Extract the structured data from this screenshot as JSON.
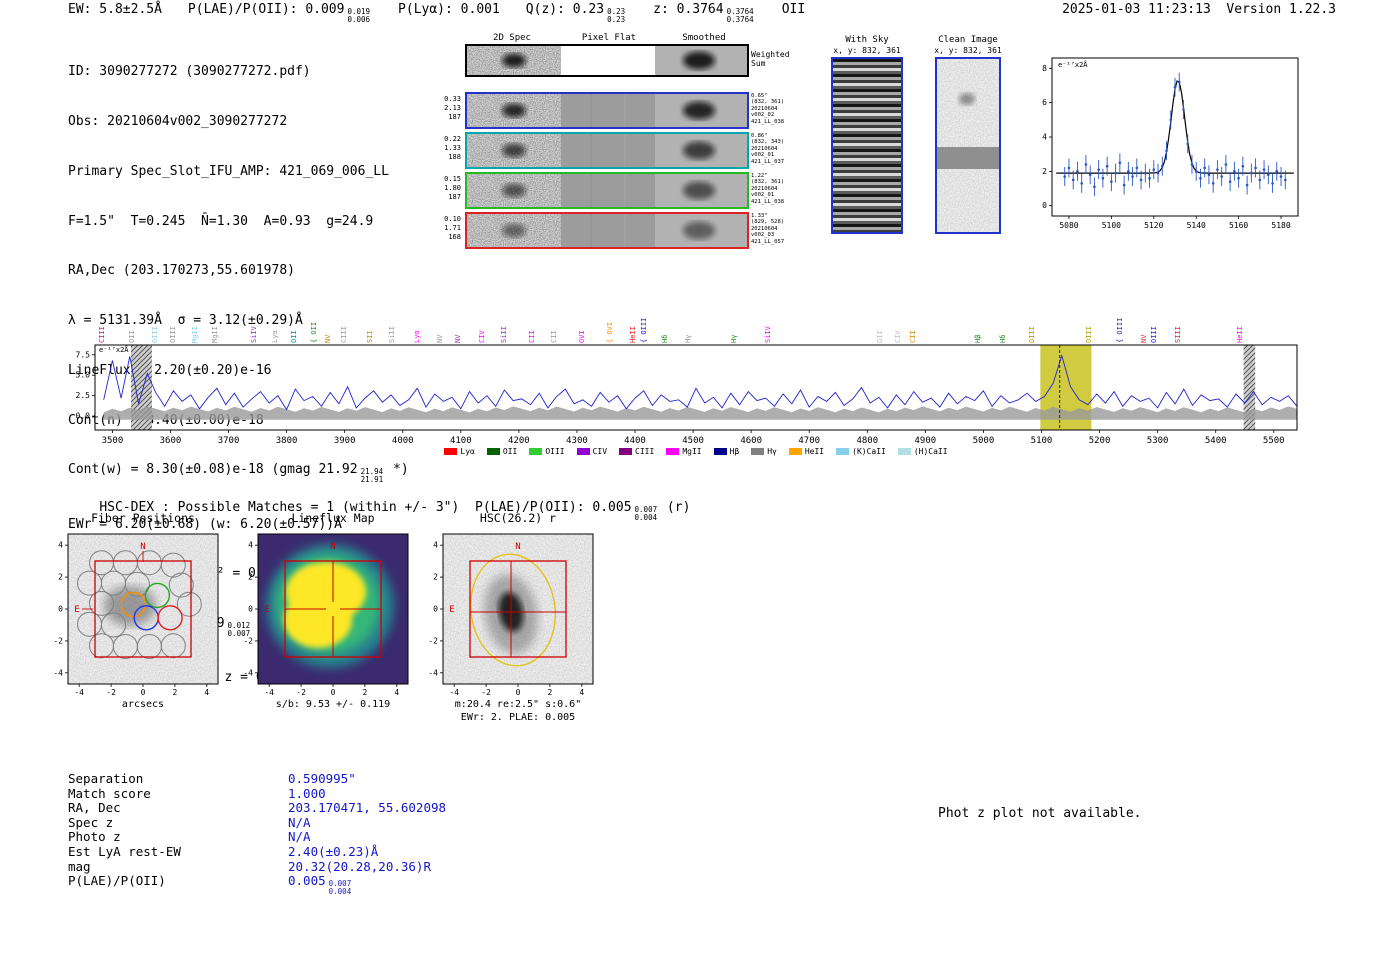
{
  "meta": {
    "timestamp": "2025-01-03 11:23:13  Version 1.22.3"
  },
  "header": {
    "ew": "EW: 5.8±2.5Å",
    "plae": {
      "label": "P(LAE)/P(OII): 0.009",
      "sup": "0.019",
      "sub": "0.006"
    },
    "plya": "P(Lyα): 0.001",
    "qz": {
      "label": "Q(z): 0.23",
      "sup": "0.23",
      "sub": "0.23"
    },
    "z": {
      "label": "z: 0.3764",
      "sup": "0.3764",
      "sub": "0.3764"
    },
    "classification": "OII"
  },
  "info": {
    "l1": "ID: 3090277272 (3090277272.pdf)",
    "l2": "Obs: 20210604v002_3090277272",
    "l3": "Primary Spec_Slot_IFU_AMP: 421_069_006_LL",
    "l4": "F=1.5\"  T=0.245  N̄=1.30  A=0.93  g=24.9",
    "l5": "RA,Dec (203.170273,55.601978)",
    "l6": "λ = 5131.39Å  σ = 3.12(±0.29)Å",
    "l7": "LineFlux = 2.20(±0.20)e-16",
    "l8": "Cont(n) = 8.40(±0.00)e-18",
    "l9": {
      "pre": "Cont(w) = 8.30(±0.08)e-18 (gmag 21.92",
      "sup": "21.94",
      "sub": "21.91",
      "post": " *)"
    },
    "l10": "EWr = 6.20(±0.68) (w: 6.20(±0.57))Å",
    "l11": "S/N = 15.3(±1.4)  χ² = 0.7(±0.0)",
    "l12": {
      "pre": "P(LAE)/P(OII): 0.009",
      "sup": "0.012",
      "sub": "0.007",
      "post": ""
    },
    "l13": "LyA z = 3.2210  OII z = 0.3765"
  },
  "spec2d": {
    "headers": [
      "2D Spec",
      "Pixel Flat",
      "Smoothed"
    ],
    "weighted_label": [
      "Weighted",
      "Sum"
    ],
    "rows": [
      {
        "stats": [
          "0.33",
          "2.13",
          "187"
        ],
        "color": "#2233cc",
        "ann": [
          "0.65\"",
          "(832, 361)",
          "20210604",
          "v002_02",
          "421_LL_038"
        ]
      },
      {
        "stats": [
          "0.22",
          "1.33",
          "188"
        ],
        "color": "#00a8a8",
        "ann": [
          "0.86\"",
          "(832, 343)",
          "20210604",
          "v002_01",
          "421_LL_037"
        ]
      },
      {
        "stats": [
          "0.15",
          "1.80",
          "187"
        ],
        "color": "#22bb22",
        "ann": [
          "1.22\"",
          "(832, 361)",
          "20210604",
          "v002_01",
          "421_LL_038"
        ]
      },
      {
        "stats": [
          "0.10",
          "1.71",
          "168"
        ],
        "color": "#dd2222",
        "ann": [
          "1.33\"",
          "(829, 528)",
          "20210604",
          "v002_03",
          "421_LL_057"
        ]
      }
    ]
  },
  "sky": {
    "with_sky": {
      "title": "With Sky",
      "coords": "x, y: 832, 361"
    },
    "clean": {
      "title": "Clean Image",
      "coords": "x, y: 832, 361"
    }
  },
  "hsc_heading": {
    "pre": "HSC-DEX : Possible Matches = 1 (within +/- 3\")  P(LAE)/P(OII): 0.005",
    "sup": "0.007",
    "sub": "0.004",
    "post": " (r)"
  },
  "panels": {
    "fiber": {
      "title": "Fiber Positions",
      "xlabel": "arcsecs"
    },
    "lineflux": {
      "title": "Lineflux Map",
      "xlabel": "s/b: 9.53 +/- 0.119"
    },
    "hsc": {
      "title": "HSC(26.2) r",
      "xlabel": "m:20.4 re:2.5\" s:0.6\"",
      "xlabel2": "EWr: 2. PLAE: 0.005"
    },
    "ticks": [
      -4,
      -2,
      0,
      2,
      4
    ],
    "compass": {
      "n": "N",
      "e": "E"
    }
  },
  "match_table": {
    "rows": [
      {
        "label": "Separation",
        "value": "0.590995\""
      },
      {
        "label": "Match score",
        "value": "1.000"
      },
      {
        "label": "RA, Dec",
        "value": "203.170471, 55.602098"
      },
      {
        "label": "Spec z",
        "value": "N/A"
      },
      {
        "label": "Photo z",
        "value": "N/A"
      },
      {
        "label": "Est LyA rest-EW",
        "value": "2.40(±0.23)Å"
      },
      {
        "label": "mag",
        "value": "20.32(20.28,20.36)R"
      },
      {
        "label": "P(LAE)/P(OII)",
        "value": "0.005",
        "sup": "0.007",
        "sub": "0.004"
      }
    ]
  },
  "photz_note": "Phot z plot not available.",
  "chart_data": [
    {
      "type": "scatter",
      "name": "emission-line-fit",
      "ylabel": "e⁻¹⁷x2Å",
      "xlim": [
        5072,
        5188
      ],
      "ylim": [
        -0.6,
        8.6
      ],
      "xticks": [
        5080,
        5100,
        5120,
        5140,
        5160,
        5180
      ],
      "yticks": [
        0,
        2,
        4,
        6,
        8
      ],
      "x_start": 5078,
      "x_step": 2,
      "y": [
        1.7,
        2.2,
        1.5,
        2.0,
        1.3,
        2.4,
        1.8,
        1.1,
        2.1,
        1.6,
        2.3,
        1.4,
        1.9,
        2.5,
        1.2,
        2.0,
        1.7,
        2.2,
        1.5,
        1.9,
        1.6,
        2.1,
        1.9,
        2.3,
        3.2,
        5.0,
        6.9,
        7.2,
        5.6,
        3.6,
        2.4,
        2.0,
        1.6,
        2.2,
        1.8,
        1.3,
        2.1,
        1.7,
        2.4,
        1.4,
        2.0,
        1.6,
        2.3,
        1.2,
        1.9,
        2.2,
        1.5,
        2.1,
        1.8,
        1.3,
        2.0,
        1.7,
        1.5
      ],
      "yerr": 0.55,
      "fit": {
        "center": 5131.39,
        "sigma": 3.12,
        "amplitude": 5.4,
        "continuum": 1.9
      },
      "point_color": "#2855c8",
      "fit_color": "#000000"
    },
    {
      "type": "line",
      "name": "full-spectrum",
      "ylabel": "e⁻¹⁷x2Å",
      "xlim": [
        3470,
        5540
      ],
      "ylim": [
        -1.7,
        8.7
      ],
      "xticks": [
        3500,
        3600,
        3700,
        3800,
        3900,
        4000,
        4100,
        4200,
        4300,
        4400,
        4500,
        4600,
        4700,
        4800,
        4900,
        5000,
        5100,
        5200,
        5300,
        5400,
        5500
      ],
      "yticks": [
        0.0,
        2.5,
        5.0,
        7.5
      ],
      "x_start": 3485,
      "x_step": 15,
      "values": [
        2.0,
        6.8,
        2.2,
        7.3,
        1.5,
        5.2,
        2.8,
        1.2,
        3.1,
        1.8,
        2.6,
        0.9,
        2.3,
        3.4,
        1.4,
        2.8,
        1.1,
        2.1,
        3.0,
        1.6,
        2.5,
        0.8,
        3.3,
        1.9,
        2.4,
        1.2,
        2.9,
        1.5,
        3.6,
        1.0,
        2.2,
        3.1,
        1.7,
        2.6,
        1.3,
        2.0,
        3.4,
        1.1,
        2.7,
        1.8,
        2.3,
        0.9,
        3.0,
        1.6,
        2.5,
        1.2,
        3.2,
        1.9,
        2.1,
        1.4,
        2.8,
        1.0,
        2.4,
        3.3,
        1.5,
        2.0,
        1.2,
        2.9,
        1.7,
        2.5,
        0.9,
        2.2,
        3.1,
        1.3,
        2.6,
        1.8,
        2.0,
        1.1,
        3.4,
        1.6,
        2.3,
        1.0,
        2.8,
        1.4,
        3.0,
        1.9,
        2.2,
        1.2,
        2.7,
        1.5,
        3.2,
        1.1,
        2.4,
        1.8,
        2.9,
        1.3,
        2.1,
        3.5,
        1.6,
        2.3,
        1.0,
        2.6,
        1.4,
        3.0,
        1.7,
        2.2,
        1.1,
        2.8,
        1.5,
        2.4,
        1.9,
        3.1,
        1.2,
        2.5,
        1.6,
        2.0,
        2.8,
        1.8,
        2.4,
        4.0,
        7.4,
        3.6,
        2.0,
        1.4,
        2.7,
        1.6,
        3.0,
        1.2,
        2.5,
        1.8,
        2.2,
        1.0,
        2.9,
        1.5,
        3.3,
        1.3,
        2.6,
        1.9,
        2.1,
        1.1,
        2.7,
        1.6,
        3.0,
        1.4,
        2.3,
        1.8,
        2.5,
        1.2
      ],
      "line_color": "#2222cc",
      "highlight_band": {
        "x0": 5098,
        "x1": 5186,
        "color": "#c8c21e",
        "opacity": 0.85
      },
      "marker_line": 5131.39,
      "hatch_bands": [
        [
          3532,
          3568
        ],
        [
          5448,
          5468
        ]
      ],
      "legend": [
        {
          "label": "Lyα",
          "color": "#ff0000"
        },
        {
          "label": "OII",
          "color": "#006400"
        },
        {
          "label": "OIII",
          "color": "#32cd32"
        },
        {
          "label": "CIV",
          "color": "#9400d3"
        },
        {
          "label": "CIII",
          "color": "#800080"
        },
        {
          "label": "MgII",
          "color": "#ff00ff"
        },
        {
          "label": "Hβ",
          "color": "#00008b"
        },
        {
          "label": "Hγ",
          "color": "#808080"
        },
        {
          "label": "HeII",
          "color": "#ffa500"
        },
        {
          "label": "(K)CaII",
          "color": "#87ceeb"
        },
        {
          "label": "(H)CaII",
          "color": "#b0e0e6"
        }
      ],
      "line_labels": [
        {
          "x": 3496,
          "t": "CIII",
          "c": "#c71585"
        },
        {
          "x": 3547,
          "t": "OII",
          "c": "#999999"
        },
        {
          "x": 3587,
          "t": "OIII",
          "c": "#87ceeb"
        },
        {
          "x": 3618,
          "t": "OIII",
          "c": "#999999"
        },
        {
          "x": 3656,
          "t": "MgII",
          "c": "#87ceeb"
        },
        {
          "x": 3690,
          "t": "MgII",
          "c": "#999999"
        },
        {
          "x": 3758,
          "t": "SiIV",
          "c": "#9932cc"
        },
        {
          "x": 3794,
          "t": "Lyα",
          "c": "#999999"
        },
        {
          "x": 3826,
          "t": "OII",
          "c": "#008b8b"
        },
        {
          "x": 3861,
          "t": "OII",
          "c": "#228b22",
          "b": true
        },
        {
          "x": 3885,
          "t": "NV",
          "c": "#cc8800"
        },
        {
          "x": 3913,
          "t": "CIII",
          "c": "#999999"
        },
        {
          "x": 3957,
          "t": "SII",
          "c": "#cc8800"
        },
        {
          "x": 3995,
          "t": "SiII",
          "c": "#999999"
        },
        {
          "x": 4038,
          "t": "Lyα",
          "c": "#ff00ff"
        },
        {
          "x": 4078,
          "t": "NV",
          "c": "#999999"
        },
        {
          "x": 4109,
          "t": "NV",
          "c": "#9932cc"
        },
        {
          "x": 4150,
          "t": "CIV",
          "c": "#ff00ff"
        },
        {
          "x": 4188,
          "t": "SiII",
          "c": "#9932cc"
        },
        {
          "x": 4236,
          "t": "CII",
          "c": "#ff00ff"
        },
        {
          "x": 4274,
          "t": "CII",
          "c": "#999999"
        },
        {
          "x": 4322,
          "t": "OVI",
          "c": "#ff00ff"
        },
        {
          "x": 4370,
          "t": "OVI",
          "c": "#ff8c00",
          "b": true
        },
        {
          "x": 4410,
          "t": "HeII",
          "c": "#dd2222"
        },
        {
          "x": 4429,
          "t": "OIII",
          "c": "#2222cc",
          "b": true
        },
        {
          "x": 4465,
          "t": "Hδ",
          "c": "#228b22"
        },
        {
          "x": 4505,
          "t": "Hγ",
          "c": "#999999"
        },
        {
          "x": 4584,
          "t": "Hγ",
          "c": "#228b22"
        },
        {
          "x": 4643,
          "t": "SiIV",
          "c": "#ff00ff"
        },
        {
          "x": 4835,
          "t": "OII",
          "c": "#bbbbbb"
        },
        {
          "x": 4866,
          "t": "CIV",
          "c": "#bbbbbb"
        },
        {
          "x": 4892,
          "t": "CII",
          "c": "#cc8800"
        },
        {
          "x": 5004,
          "t": "Hβ",
          "c": "#228b22"
        },
        {
          "x": 5047,
          "t": "Hδ",
          "c": "#228b22"
        },
        {
          "x": 5097,
          "t": "OIII",
          "c": "#a0a000"
        },
        {
          "x": 5195,
          "t": "OIII",
          "c": "#a0a000"
        },
        {
          "x": 5249,
          "t": "OIII",
          "c": "#2222cc",
          "b": true
        },
        {
          "x": 5290,
          "t": "NV",
          "c": "#dd2222"
        },
        {
          "x": 5307,
          "t": "OIII",
          "c": "#2222cc"
        },
        {
          "x": 5348,
          "t": "SIII",
          "c": "#dd2222"
        },
        {
          "x": 5455,
          "t": "HeII",
          "c": "#ff00ff"
        }
      ]
    }
  ]
}
